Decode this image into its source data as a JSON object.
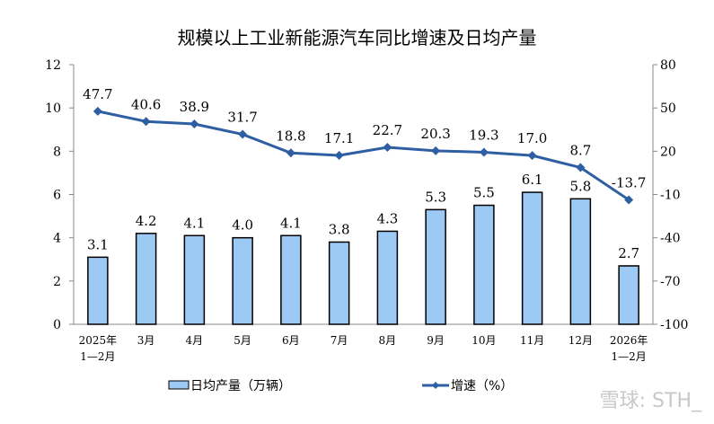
{
  "chart_data": {
    "type": "bar+line",
    "title": "规模以上工业新能源汽车同比增速及日均产量",
    "categories": [
      [
        "2025年",
        "1—2月"
      ],
      [
        "3月"
      ],
      [
        "4月"
      ],
      [
        "5月"
      ],
      [
        "6月"
      ],
      [
        "7月"
      ],
      [
        "8月"
      ],
      [
        "9月"
      ],
      [
        "10月"
      ],
      [
        "11月"
      ],
      [
        "12月"
      ],
      [
        "2026年",
        "1—2月"
      ]
    ],
    "series": [
      {
        "name": "日均产量（万辆）",
        "type": "bar",
        "axis": "left",
        "values": [
          3.1,
          4.2,
          4.1,
          4.0,
          4.1,
          3.8,
          4.3,
          5.3,
          5.5,
          6.1,
          5.8,
          2.7
        ],
        "labels": [
          "3.1",
          "4.2",
          "4.1",
          "4.0",
          "4.1",
          "3.8",
          "4.3",
          "5.3",
          "5.5",
          "6.1",
          "5.8",
          "2.7"
        ],
        "color": "#9dc9f5"
      },
      {
        "name": "增速（%）",
        "type": "line",
        "axis": "right",
        "values": [
          47.7,
          40.6,
          38.9,
          31.7,
          18.8,
          17.1,
          22.7,
          20.3,
          19.3,
          17.0,
          8.7,
          -13.7
        ],
        "labels": [
          "47.7",
          "40.6",
          "38.9",
          "31.7",
          "18.8",
          "17.1",
          "22.7",
          "20.3",
          "19.3",
          "17.0",
          "8.7",
          "-13.7"
        ],
        "color": "#2e5fa3"
      }
    ],
    "left_axis": {
      "range": [
        0,
        12
      ],
      "ticks": [
        "0",
        "2",
        "4",
        "6",
        "8",
        "10",
        "12"
      ]
    },
    "right_axis": {
      "range": [
        -100,
        80
      ],
      "ticks": [
        "-100",
        "-70",
        "-40",
        "-10",
        "20",
        "50",
        "80"
      ]
    },
    "grid": false,
    "legend": "bottom"
  },
  "watermark": "雪球: STH_"
}
